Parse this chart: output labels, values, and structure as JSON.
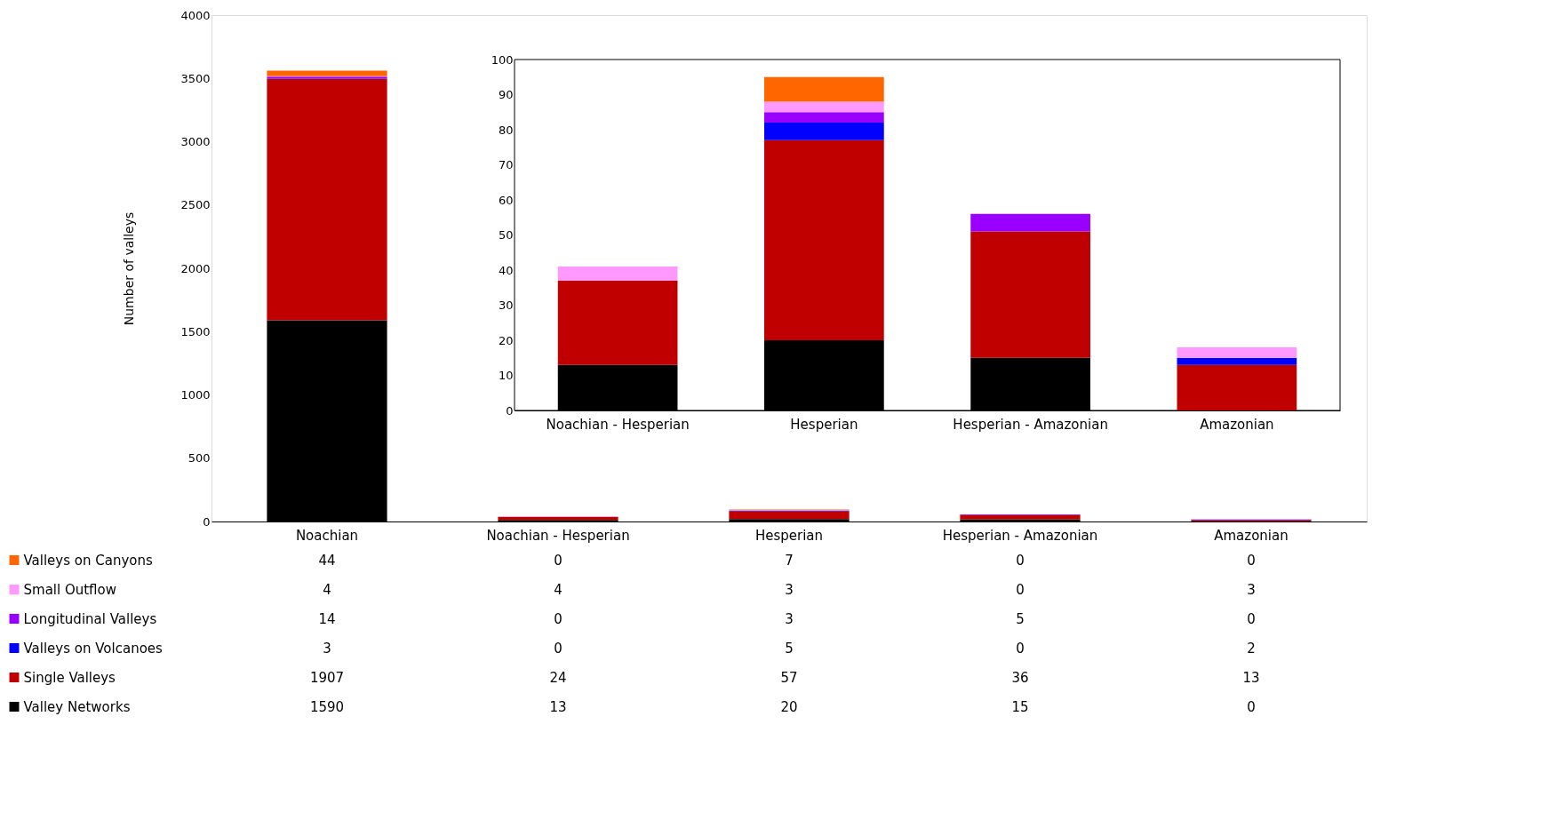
{
  "chart_data": [
    {
      "type": "bar",
      "stacked": true,
      "ylabel": "Number of valleys",
      "categories": [
        "Noachian",
        "Noachian - Hesperian",
        "Hesperian",
        "Hesperian - Amazonian",
        "Amazonian"
      ],
      "ylim": [
        0,
        4000
      ],
      "yticks": [
        0,
        500,
        1000,
        1500,
        2000,
        2500,
        3000,
        3500,
        4000
      ],
      "data_labels": true,
      "legend": "bottom",
      "series": [
        {
          "name": "Valley Networks",
          "color": "#000000",
          "values": [
            1590,
            13,
            20,
            15,
            0
          ]
        },
        {
          "name": "Single Valleys",
          "color": "#c00000",
          "values": [
            1907,
            24,
            57,
            36,
            13
          ]
        },
        {
          "name": "Valleys on Volcanoes",
          "color": "#0000ff",
          "values": [
            3,
            0,
            5,
            0,
            2
          ]
        },
        {
          "name": "Longitudinal Valleys",
          "color": "#9900ff",
          "values": [
            14,
            0,
            3,
            5,
            0
          ]
        },
        {
          "name": "Small Outflow",
          "color": "#ff99ff",
          "values": [
            4,
            4,
            3,
            0,
            3
          ]
        },
        {
          "name": "Valleys on Canyons",
          "color": "#ff6600",
          "values": [
            44,
            0,
            7,
            0,
            0
          ]
        }
      ]
    },
    {
      "type": "bar",
      "stacked": true,
      "categories": [
        "Noachian - Hesperian",
        "Hesperian",
        "Hesperian - Amazonian",
        "Amazonian"
      ],
      "ylim": [
        0,
        100
      ],
      "yticks": [
        0,
        10,
        20,
        30,
        40,
        50,
        60,
        70,
        80,
        90,
        100
      ],
      "series": [
        {
          "color": "#000000",
          "values": [
            13,
            20,
            15,
            0
          ]
        },
        {
          "color": "#c00000",
          "values": [
            24,
            57,
            36,
            13
          ]
        },
        {
          "color": "#0000ff",
          "values": [
            0,
            5,
            0,
            2
          ]
        },
        {
          "color": "#9900ff",
          "values": [
            0,
            3,
            5,
            0
          ]
        },
        {
          "color": "#ff99ff",
          "values": [
            4,
            3,
            0,
            3
          ]
        },
        {
          "color": "#ff6600",
          "values": [
            0,
            7,
            0,
            0
          ]
        }
      ]
    }
  ]
}
